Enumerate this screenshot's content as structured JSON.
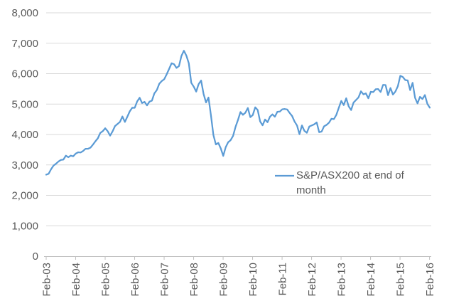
{
  "chart_data": {
    "type": "line",
    "title": "",
    "xlabel": "",
    "ylabel": "",
    "grid": true,
    "ylim": [
      0,
      8000
    ],
    "ytick_step": 1000,
    "y_tick_labels": [
      "0",
      "1,000",
      "2,000",
      "3,000",
      "4,000",
      "5,000",
      "6,000",
      "7,000",
      "8,000"
    ],
    "x_tick_labels": [
      "Feb-03",
      "Feb-04",
      "Feb-05",
      "Feb-06",
      "Feb-07",
      "Feb-08",
      "Feb-09",
      "Feb-10",
      "Feb-11",
      "Feb-12",
      "Feb-13",
      "Feb-14",
      "Feb-15",
      "Feb-16"
    ],
    "x_tick_label_rotation_deg": 90,
    "x_tick_interval_months": 12,
    "legend_position": "inside-center-right",
    "series": [
      {
        "name": "S&P/ASX200 at end of month",
        "color": "#5B9BD5",
        "frequency": "monthly",
        "start_month": "Feb-03",
        "end_month": "Feb-16",
        "values": [
          2680,
          2710,
          2860,
          2980,
          3040,
          3112,
          3165,
          3176,
          3304,
          3253,
          3306,
          3283,
          3372,
          3416,
          3408,
          3458,
          3530,
          3531,
          3567,
          3666,
          3775,
          3874,
          4051,
          4109,
          4205,
          4110,
          3962,
          4104,
          4278,
          4346,
          4414,
          4593,
          4413,
          4584,
          4763,
          4880,
          4878,
          5087,
          5208,
          5034,
          5074,
          4957,
          5080,
          5113,
          5353,
          5462,
          5670,
          5758,
          5817,
          5979,
          6158,
          6342,
          6310,
          6188,
          6248,
          6581,
          6754,
          6594,
          6340,
          5697,
          5572,
          5410,
          5657,
          5774,
          5333,
          5053,
          5216,
          4631,
          3983,
          3673,
          3722,
          3541,
          3297,
          3582,
          3745,
          3813,
          3955,
          4250,
          4479,
          4739,
          4647,
          4716,
          4871,
          4570,
          4638,
          4893,
          4807,
          4430,
          4302,
          4494,
          4404,
          4583,
          4662,
          4584,
          4745,
          4754,
          4829,
          4838,
          4823,
          4708,
          4608,
          4425,
          4297,
          4009,
          4298,
          4120,
          4057,
          4263,
          4299,
          4335,
          4397,
          4076,
          4095,
          4269,
          4316,
          4387,
          4517,
          4506,
          4649,
          4879,
          5104,
          4967,
          5191,
          4927,
          4803,
          5052,
          5135,
          5219,
          5420,
          5320,
          5352,
          5190,
          5405,
          5395,
          5489,
          5493,
          5396,
          5633,
          5626,
          5293,
          5527,
          5313,
          5411,
          5588,
          5929,
          5892,
          5790,
          5778,
          5459,
          5699,
          5207,
          5022,
          5239,
          5167,
          5296,
          5006,
          4881
        ]
      }
    ]
  },
  "colors": {
    "line": "#5B9BD5",
    "gridline": "#D9D9D9",
    "axis": "#BFBFBF",
    "tick": "#BFBFBF",
    "text": "#595959",
    "background": "#FFFFFF"
  }
}
